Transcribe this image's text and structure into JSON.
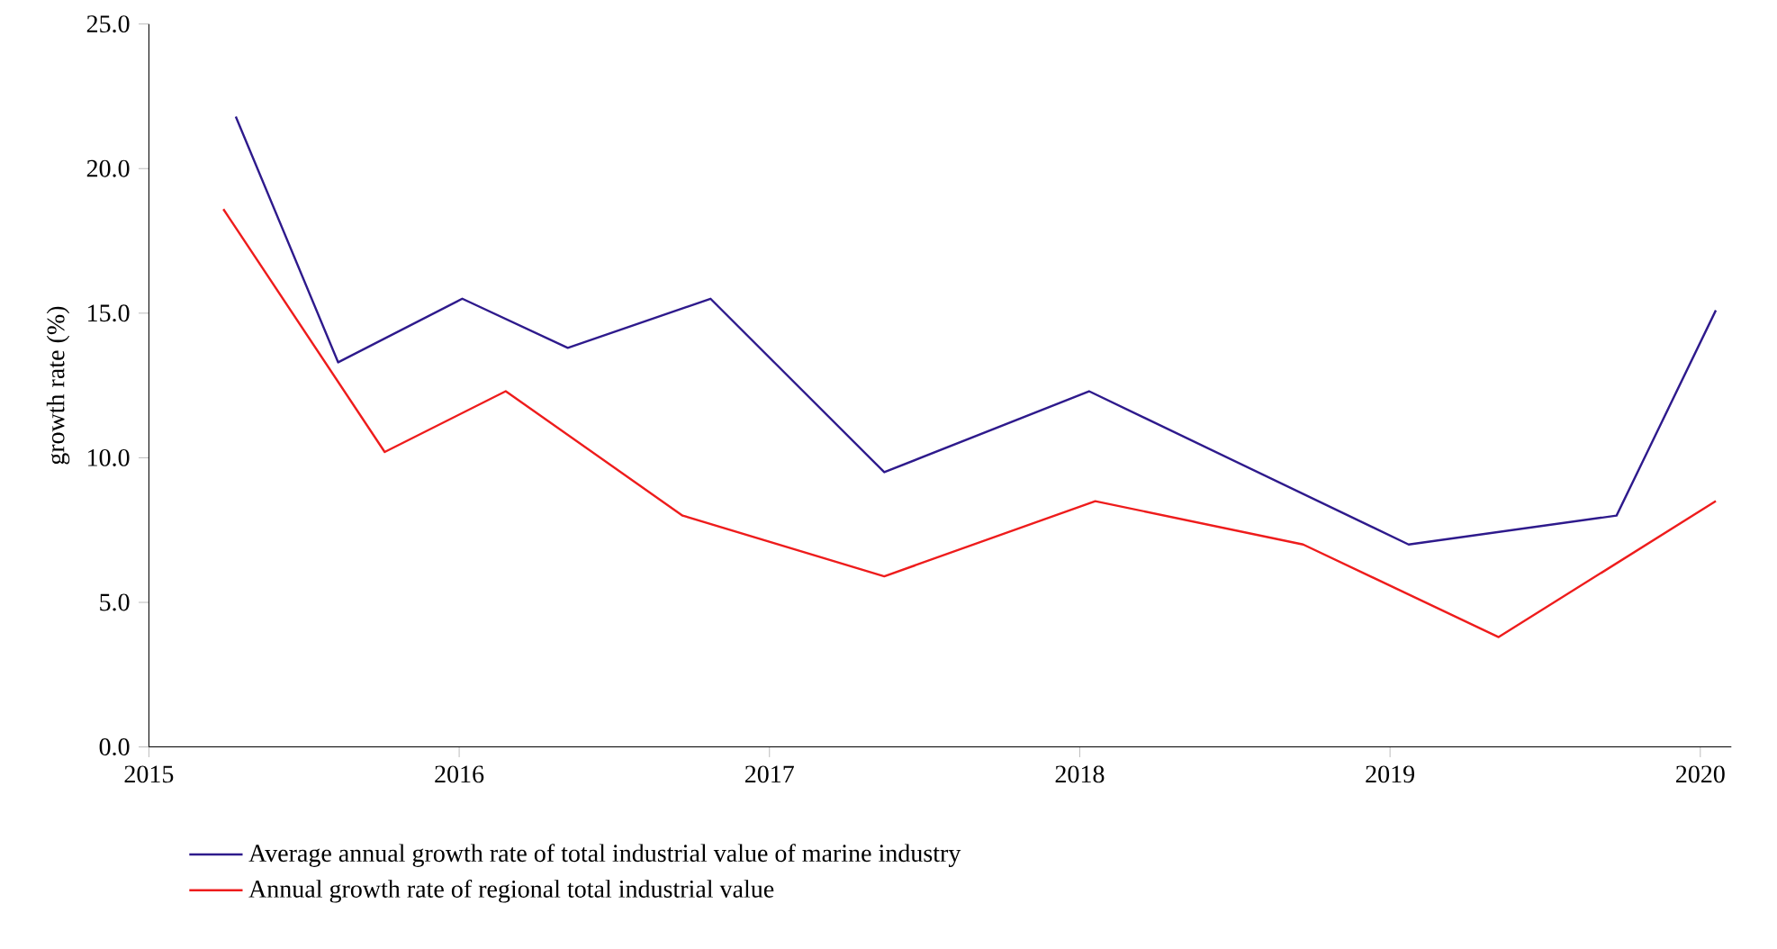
{
  "chart_data": {
    "type": "line",
    "ylabel": "growth rate (%)",
    "xlim": [
      2015,
      2020.1
    ],
    "xticks": [
      2015,
      2016,
      2017,
      2018,
      2019,
      2020
    ],
    "ylim": [
      0,
      25
    ],
    "yticks": [
      {
        "value": 0,
        "label": "0.0"
      },
      {
        "value": 5,
        "label": "5.0"
      },
      {
        "value": 10,
        "label": "10.0"
      },
      {
        "value": 15,
        "label": "15.0"
      },
      {
        "value": 20,
        "label": "20.0"
      },
      {
        "value": 25,
        "label": "25.0"
      }
    ],
    "grid": false,
    "legend": "bottom",
    "marker": "none",
    "line_style": "solid",
    "series": [
      {
        "name": "Average annual growth rate of total industrial value of marine industry",
        "color": "#2e1a8c",
        "x": [
          2015.28,
          2015.61,
          2016.01,
          2016.35,
          2016.81,
          2017.37,
          2018.03,
          2019.06,
          2019.73,
          2020.05
        ],
        "values": [
          21.8,
          13.3,
          15.5,
          13.8,
          15.5,
          9.5,
          12.3,
          7.0,
          8.0,
          15.1
        ]
      },
      {
        "name": "Annual growth rate of regional total industrial value",
        "color": "#ee1c1c",
        "x": [
          2015.24,
          2015.76,
          2016.15,
          2016.72,
          2017.37,
          2018.05,
          2018.72,
          2019.35,
          2020.05
        ],
        "values": [
          18.6,
          10.2,
          12.3,
          8.0,
          5.9,
          8.5,
          7.0,
          3.8,
          8.5
        ]
      }
    ]
  }
}
